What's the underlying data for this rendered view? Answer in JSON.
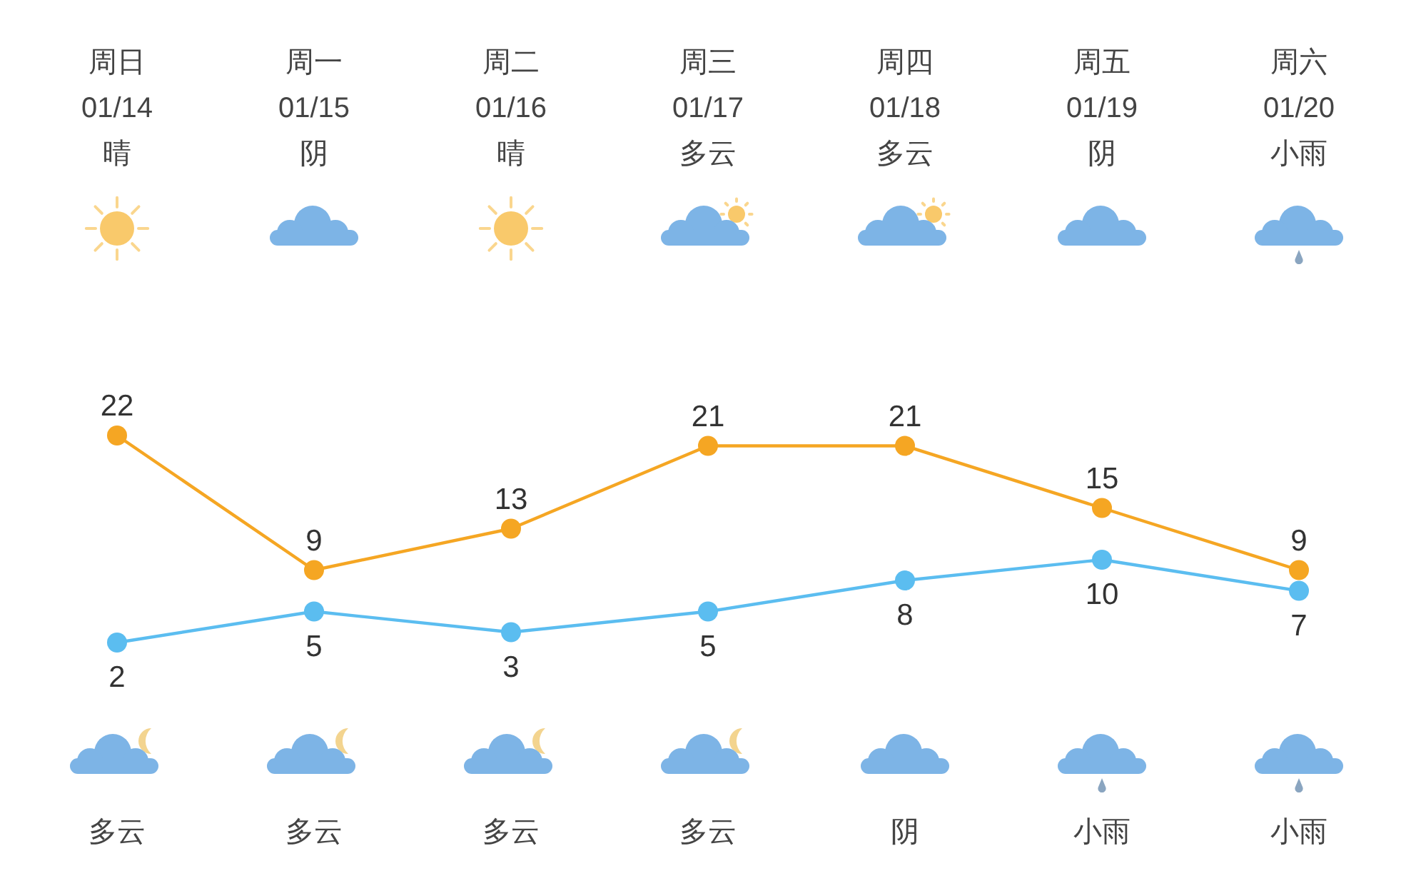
{
  "chart_data": {
    "type": "line",
    "categories": [
      "周日\n01/14\n晴",
      "周一\n01/15\n阴",
      "周二\n01/16\n晴",
      "周三\n01/17\n多云",
      "周四\n01/18\n多云",
      "周五\n01/19\n阴",
      "周六\n01/20\n小雨"
    ],
    "series": [
      {
        "color": "#f5a623",
        "values": [
          22,
          9,
          13,
          21,
          21,
          15,
          9
        ]
      },
      {
        "color": "#5bbdf0",
        "values": [
          2,
          5,
          3,
          5,
          8,
          10,
          7
        ]
      }
    ],
    "marker": "circle",
    "line_style": "solid",
    "data_labels": true,
    "annotations": [
      "多云",
      "多云",
      "多云",
      "多云",
      "阴",
      "小雨",
      "小雨"
    ]
  }
}
